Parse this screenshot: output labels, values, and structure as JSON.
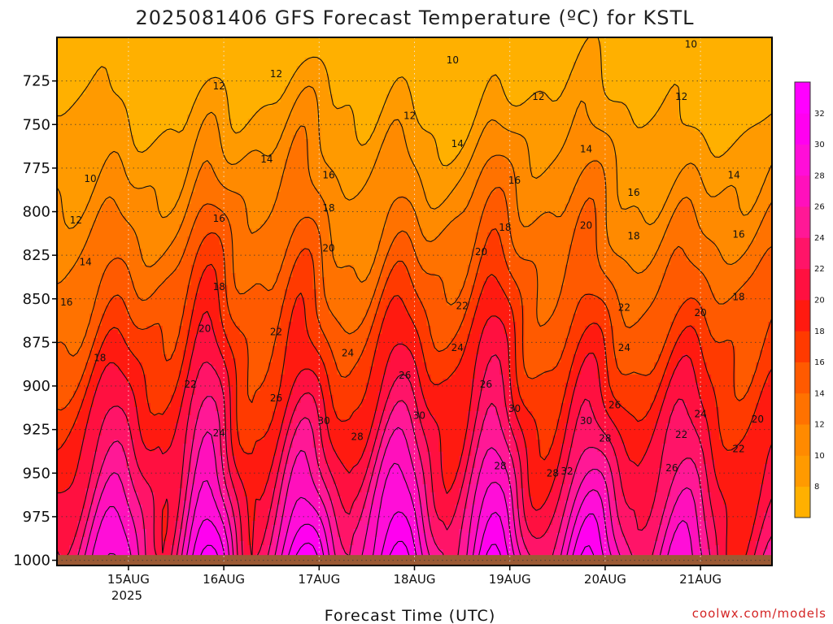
{
  "chart_data": {
    "type": "heatmap",
    "title": "2025081406 GFS Forecast Temperature (ºC) for KSTL",
    "xlabel": "Forecast Time (UTC)",
    "ylabel": "",
    "credit": "coolwx.com/models",
    "x_ticks": [
      "15AUG",
      "16AUG",
      "17AUG",
      "18AUG",
      "19AUG",
      "20AUG",
      "21AUG"
    ],
    "x_tick_sublabel": "2025",
    "x_range_days": [
      14.25,
      21.75
    ],
    "y_ticks": [
      725,
      750,
      775,
      800,
      825,
      850,
      875,
      900,
      925,
      950,
      975,
      1000
    ],
    "y_range_hpa": [
      1003,
      700
    ],
    "y_scale": "pressure (inverted)",
    "grid": true,
    "colorbar": {
      "levels": [
        8,
        10,
        12,
        14,
        16,
        18,
        20,
        22,
        24,
        26,
        28,
        30,
        32
      ],
      "colors": [
        "#ffb000",
        "#ff9a00",
        "#ff8a00",
        "#ff7200",
        "#ff5a00",
        "#ff3a00",
        "#ff1a10",
        "#ff1040",
        "#ff1468",
        "#ff1896",
        "#ff10bc",
        "#ff0ed8",
        "#ff00f0",
        "#ff00ff"
      ]
    },
    "surface_temperature_c": {
      "afternoon_max_days": [
        15.83,
        16.83,
        17.83,
        18.83,
        19.83,
        20.83
      ],
      "max_values": [
        30,
        34,
        33,
        33,
        34,
        32,
        29
      ],
      "min_values": [
        23,
        21,
        23,
        24,
        23,
        23,
        22
      ]
    },
    "contour_labels": [
      {
        "v": 10,
        "t": 14.6,
        "p": 781
      },
      {
        "v": 12,
        "t": 14.45,
        "p": 805
      },
      {
        "v": 14,
        "t": 14.55,
        "p": 829
      },
      {
        "v": 16,
        "t": 14.35,
        "p": 852
      },
      {
        "v": 18,
        "t": 14.7,
        "p": 884
      },
      {
        "v": 20,
        "t": 15.8,
        "p": 867
      },
      {
        "v": 22,
        "t": 15.65,
        "p": 899
      },
      {
        "v": 24,
        "t": 15.95,
        "p": 927
      },
      {
        "v": 16,
        "t": 15.95,
        "p": 804
      },
      {
        "v": 18,
        "t": 15.95,
        "p": 843
      },
      {
        "v": 12,
        "t": 15.95,
        "p": 728
      },
      {
        "v": 12,
        "t": 16.55,
        "p": 721
      },
      {
        "v": 14,
        "t": 16.45,
        "p": 770
      },
      {
        "v": 16,
        "t": 17.1,
        "p": 779
      },
      {
        "v": 18,
        "t": 17.1,
        "p": 798
      },
      {
        "v": 20,
        "t": 17.1,
        "p": 821
      },
      {
        "v": 22,
        "t": 16.55,
        "p": 869
      },
      {
        "v": 24,
        "t": 17.3,
        "p": 881
      },
      {
        "v": 26,
        "t": 16.55,
        "p": 907
      },
      {
        "v": 28,
        "t": 17.4,
        "p": 929
      },
      {
        "v": 30,
        "t": 17.05,
        "p": 920
      },
      {
        "v": 26,
        "t": 17.9,
        "p": 894
      },
      {
        "v": 12,
        "t": 17.95,
        "p": 745
      },
      {
        "v": 10,
        "t": 18.4,
        "p": 713
      },
      {
        "v": 14,
        "t": 18.45,
        "p": 761
      },
      {
        "v": 16,
        "t": 19.05,
        "p": 782
      },
      {
        "v": 18,
        "t": 18.95,
        "p": 809
      },
      {
        "v": 20,
        "t": 18.7,
        "p": 823
      },
      {
        "v": 22,
        "t": 18.5,
        "p": 854
      },
      {
        "v": 24,
        "t": 18.45,
        "p": 878
      },
      {
        "v": 26,
        "t": 18.75,
        "p": 899
      },
      {
        "v": 30,
        "t": 18.05,
        "p": 917
      },
      {
        "v": 28,
        "t": 18.9,
        "p": 946
      },
      {
        "v": 30,
        "t": 19.05,
        "p": 913
      },
      {
        "v": 12,
        "t": 19.3,
        "p": 734
      },
      {
        "v": 14,
        "t": 19.8,
        "p": 764
      },
      {
        "v": 16,
        "t": 20.3,
        "p": 789
      },
      {
        "v": 18,
        "t": 20.3,
        "p": 814
      },
      {
        "v": 20,
        "t": 19.8,
        "p": 808
      },
      {
        "v": 22,
        "t": 20.2,
        "p": 855
      },
      {
        "v": 24,
        "t": 20.2,
        "p": 878
      },
      {
        "v": 26,
        "t": 20.1,
        "p": 911
      },
      {
        "v": 28,
        "t": 20.0,
        "p": 930
      },
      {
        "v": 30,
        "t": 19.8,
        "p": 920
      },
      {
        "v": 32,
        "t": 19.6,
        "p": 949
      },
      {
        "v": 28,
        "t": 19.45,
        "p": 950
      },
      {
        "v": 12,
        "t": 20.8,
        "p": 734
      },
      {
        "v": 14,
        "t": 21.35,
        "p": 779
      },
      {
        "v": 16,
        "t": 21.4,
        "p": 813
      },
      {
        "v": 18,
        "t": 21.4,
        "p": 849
      },
      {
        "v": 20,
        "t": 21.0,
        "p": 858
      },
      {
        "v": 20,
        "t": 21.6,
        "p": 919
      },
      {
        "v": 22,
        "t": 21.4,
        "p": 936
      },
      {
        "v": 22,
        "t": 20.8,
        "p": 928
      },
      {
        "v": 24,
        "t": 21.0,
        "p": 916
      },
      {
        "v": 26,
        "t": 20.7,
        "p": 947
      },
      {
        "v": 10,
        "t": 20.9,
        "p": 704
      }
    ]
  }
}
